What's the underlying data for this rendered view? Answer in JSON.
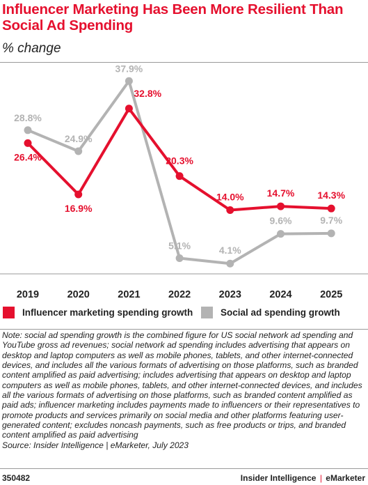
{
  "title": "Influencer Marketing Has Been More Resilient Than Social Ad Spending",
  "subtitle": "% change",
  "colors": {
    "influencer": "#e5102e",
    "social": "#b3b3b3",
    "text": "#222222"
  },
  "chart_data": {
    "type": "line",
    "categories": [
      "2019",
      "2020",
      "2021",
      "2022",
      "2023",
      "2024",
      "2025"
    ],
    "ylim": [
      0,
      40
    ],
    "grid": false,
    "legend_position": "bottom",
    "series": [
      {
        "name": "Influencer marketing spending growth",
        "color": "#e5102e",
        "values": [
          26.4,
          16.9,
          32.8,
          20.3,
          14.0,
          14.7,
          14.3
        ],
        "labels": [
          "26.4%",
          "16.9%",
          "32.8%",
          "20.3%",
          "14.0%",
          "14.7%",
          "14.3%"
        ]
      },
      {
        "name": "Social ad spending growth",
        "color": "#b3b3b3",
        "values": [
          28.8,
          24.9,
          37.9,
          5.1,
          4.1,
          9.6,
          9.7
        ],
        "labels": [
          "28.8%",
          "24.9%",
          "37.9%",
          "5.1%",
          "4.1%",
          "9.6%",
          "9.7%"
        ]
      }
    ]
  },
  "note": "Note: social ad spending growth is the combined figure for US social network ad spending and YouTube gross ad revenues; social network ad spending includes advertising that appears on desktop and laptop computers as well as mobile phones, tablets, and other internet-connected devices, and includes all the various formats of advertising on those platforms, such as branded content amplified as paid advertising; includes advertising that appears on desktop and laptop computers as well as mobile phones, tablets, and other internet-connected devices, and includes all the various formats of advertising on those platforms, such as branded content amplified as paid ads; influencer marketing includes payments made to influencers or their representatives to promote products and services primarily on social media and other platforms featuring user-generated content; excludes noncash payments, such as free products or trips, and branded content amplified as paid advertising",
  "source": "Source: Insider Intelligence | eMarketer, July 2023",
  "footer": {
    "chart_id": "350482",
    "brand_left": "Insider Intelligence",
    "separator": "|",
    "brand_right": "eMarketer"
  }
}
